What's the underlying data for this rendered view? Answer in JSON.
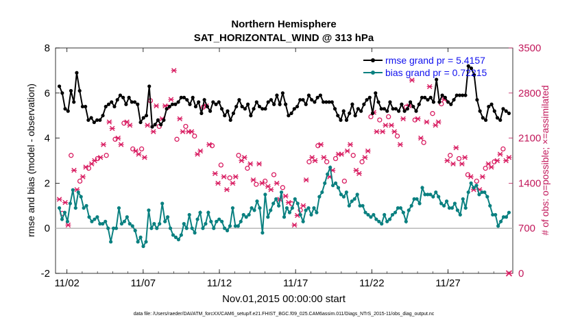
{
  "chart_data": {
    "type": "line",
    "title": "Northern Hemisphere",
    "subtitle": "SAT_HORIZONTAL_WIND @ 313 hPa",
    "xlabel": "Nov.01,2015 00:00:00 start",
    "ylabel_left": "rmse and bias (model - observation)",
    "ylabel_right": "# of obs: o=possible; ×=assimilated",
    "footer": "data file: /Users/raeder/DAI/ATM_forcXX/CAM6_setup/f.e21.FHIST_BGC.f09_025.CAM6assim.011/Diags_NTrS_2015-11/obs_diag_output.nc",
    "x_tick_labels": [
      "11/02",
      "11/07",
      "11/12",
      "11/17",
      "11/22",
      "11/27"
    ],
    "x_tick_days": [
      2,
      7,
      12,
      17,
      22,
      27
    ],
    "x_range_days": [
      1.25,
      31.25
    ],
    "ylim_left": [
      -2,
      8
    ],
    "yticks_left": [
      "-2",
      "0",
      "2",
      "4",
      "6",
      "8"
    ],
    "ylim_right": [
      0,
      3500
    ],
    "yticks_right": [
      "0",
      "700",
      "1400",
      "2100",
      "2800",
      "3500"
    ],
    "legend": [
      {
        "label": "rmse grand pr = 5.4157",
        "color": "#000000"
      },
      {
        "label": "bias grand pr = 0.72215",
        "color": "#0a8080"
      }
    ],
    "colors": {
      "rmse": "#000000",
      "bias": "#0a8080",
      "obs": "#d81b60",
      "zero_line": "#b8b8b8",
      "legend_text": "#1010ee",
      "right_axis": "#c2185b"
    },
    "series": [
      {
        "name": "rmse",
        "values": [
          6.3,
          6.0,
          5.3,
          5.2,
          6.1,
          5.6,
          6.9,
          6.1,
          5.4,
          5.4,
          4.8,
          4.9,
          4.7,
          4.8,
          4.8,
          5.0,
          5.4,
          5.5,
          5.6,
          5.4,
          5.7,
          5.9,
          5.8,
          5.5,
          5.8,
          5.6,
          5.6,
          5.5,
          4.7,
          4.9,
          5.0,
          6.3,
          4.5,
          4.6,
          4.8,
          4.6,
          4.8,
          5.3,
          5.4,
          5.5,
          5.5,
          5.6,
          5.8,
          5.8,
          5.7,
          5.5,
          5.8,
          5.4,
          5.6,
          5.1,
          5.7,
          5.4,
          5.2,
          5.6,
          5.5,
          5.6,
          5.3,
          5.0,
          5.2,
          4.8,
          5.1,
          5.4,
          5.7,
          5.4,
          5.3,
          5.5,
          5.0,
          5.3,
          5.6,
          5.4,
          5.3,
          5.3,
          5.6,
          5.7,
          5.5,
          5.9,
          5.5,
          6.0,
          5.5,
          5.0,
          5.1,
          5.3,
          5.4,
          5.7,
          5.7,
          5.5,
          5.9,
          5.7,
          5.6,
          5.8,
          5.9,
          5.6,
          5.6,
          5.6,
          5.6,
          5.3,
          5.0,
          4.8,
          5.2,
          4.8,
          5.1,
          5.5,
          5.0,
          5.3,
          5.2,
          5.5,
          5.7,
          5.8,
          5.1,
          6.0,
          5.6,
          5.3,
          5.3,
          5.2,
          5.6,
          5.3,
          5.3,
          5.2,
          5.5,
          5.2,
          5.3,
          5.6,
          5.4,
          5.2,
          5.5,
          5.8,
          5.8,
          5.7,
          5.8,
          5.6,
          6.6,
          5.6,
          5.9,
          5.8,
          5.6,
          5.5,
          5.7,
          5.9,
          5.9,
          5.9,
          5.9,
          7.2,
          7.1,
          6.8,
          5.7,
          5.2,
          4.9,
          4.8,
          5.4,
          5.5,
          5.2,
          4.9,
          4.8,
          5.3,
          5.2,
          5.1
        ]
      },
      {
        "name": "bias",
        "values": [
          0.9,
          0.4,
          0.7,
          0.3,
          1.1,
          1.7,
          0.9,
          1.6,
          1.4,
          0.9,
          1.0,
          0.5,
          0.3,
          0.4,
          0.5,
          0.2,
          0.2,
          0.3,
          0.0,
          -0.6,
          0.0,
          0.0,
          0.9,
          0.2,
          0.3,
          0.5,
          0.2,
          0.1,
          -0.1,
          -0.6,
          -0.4,
          -0.8,
          -0.6,
          0.8,
          0.0,
          0.2,
          0.0,
          0.2,
          1.1,
          0.3,
          0.5,
          0.0,
          -0.3,
          -0.4,
          -0.5,
          -0.3,
          0.2,
          0.0,
          0.6,
          0.0,
          -0.2,
          0.4,
          0.7,
          0.0,
          0.2,
          0.7,
          0.3,
          0.0,
          0.3,
          0.4,
          0.3,
          0.0,
          -0.1,
          0.1,
          0.9,
          0.1,
          0.1,
          0.3,
          0.6,
          0.5,
          0.6,
          0.9,
          0.8,
          1.2,
          0.9,
          -0.2,
          1.5,
          0.5,
          0.8,
          1.1,
          1.3,
          1.0,
          1.6,
          0.5,
          0.9,
          0.7,
          0.9,
          1.3,
          1.1,
          0.6,
          0.3,
          0.8,
          0.9,
          0.6,
          0.9,
          0.7,
          1.4,
          1.6,
          2.0,
          2.4,
          2.7,
          1.9,
          2.0,
          1.8,
          1.5,
          1.4,
          1.6,
          1.0,
          1.2,
          1.3,
          1.5,
          1.0,
          1.0,
          0.7,
          0.6,
          0.5,
          0.6,
          0.4,
          0.3,
          0.2,
          0.6,
          0.3,
          0.4,
          0.6,
          0.7,
          0.9,
          0.9,
          0.7,
          0.3,
          0.8,
          1.0,
          1.3,
          1.3,
          1.1,
          1.8,
          1.5,
          1.5,
          1.5,
          1.4,
          1.6,
          1.4,
          1.1,
          1.0,
          1.2,
          0.9,
          0.9,
          1.1,
          0.8,
          0.6,
          1.3,
          0.9,
          1.6,
          2.0,
          1.8,
          1.9,
          1.5,
          1.6,
          1.6,
          1.4,
          1.0,
          0.6,
          0.6,
          0.1,
          0.3,
          0.5,
          0.5,
          0.7
        ]
      },
      {
        "name": "obs",
        "values": [
          1150,
          900,
          1100,
          750,
          1800,
          1600,
          1300,
          1400,
          1500,
          1650,
          1600,
          1700,
          1750,
          1750,
          1800,
          2000,
          1800,
          2350,
          2250,
          2050,
          2100,
          2000,
          2300,
          2350,
          2300,
          1900,
          1900,
          1850,
          1900,
          1800,
          2300,
          2650,
          2200,
          2600,
          2250,
          2400,
          2600,
          2550,
          2700,
          3150,
          2050,
          2400,
          2200,
          2250,
          2200,
          2200,
          2100,
          1850,
          1900,
          2550,
          2600,
          2000,
          1950,
          1550,
          1400,
          1650,
          1500,
          1300,
          1450,
          1400,
          1500,
          1800,
          1750,
          1800,
          1600,
          1700,
          1450,
          1350,
          1700,
          1400,
          1400,
          1350,
          1300,
          1500,
          1400,
          1150,
          1300,
          1200,
          1100,
          1050,
          750,
          900,
          950,
          1050,
          1450,
          1700,
          1800,
          1750,
          1950,
          2000,
          1800,
          1700,
          1500,
          1600,
          1750,
          1850,
          1850,
          1400,
          1900,
          2000,
          1800,
          1600,
          1550,
          1700,
          1800,
          1900,
          2400,
          2500,
          2200,
          2350,
          2200,
          2300,
          2400,
          2300,
          2200,
          2100,
          2000,
          2400,
          2550,
          2600,
          3000,
          2350,
          2400,
          2100,
          2000,
          2350,
          2900,
          2450,
          2300,
          2350,
          2600,
          2700,
          1750,
          1800,
          1700,
          1950,
          1750,
          1700,
          1800,
          1500,
          1500,
          1300,
          1400,
          1300,
          1500,
          1600,
          1700,
          1650,
          1700,
          1750,
          1850,
          1900,
          1750,
          1800
        ]
      }
    ]
  }
}
